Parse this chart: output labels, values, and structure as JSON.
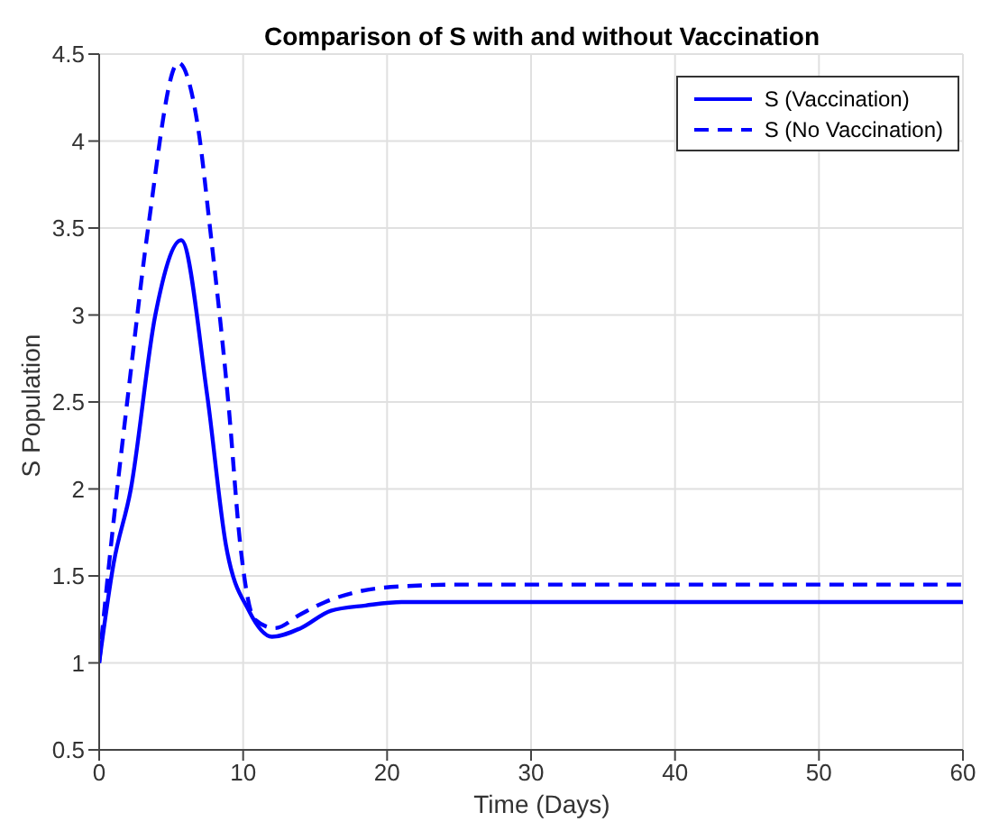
{
  "chart_data": {
    "type": "line",
    "title": "Comparison of S with and without Vaccination",
    "xlabel": "Time (Days)",
    "ylabel": "S Population",
    "series": [
      {
        "name": "S (Vaccination)",
        "color": "#0000ff",
        "line_style": "solid",
        "x": [
          0,
          1,
          2.2,
          3.9,
          5.7,
          7.5,
          8.8,
          10.4,
          12,
          14,
          16.1,
          18.5,
          21,
          25,
          30,
          40,
          50,
          60
        ],
        "values": [
          1,
          1.57,
          2,
          3,
          3.43,
          2.54,
          1.68,
          1.3,
          1.15,
          1.2,
          1.3,
          1.33,
          1.35,
          1.35,
          1.35,
          1.35,
          1.35,
          1.35
        ]
      },
      {
        "name": "S (No Vaccination)",
        "color": "#0000ff",
        "line_style": "dashed",
        "x": [
          0,
          0.6,
          2.2,
          3.4,
          5.5,
          6.9,
          7.7,
          9,
          9.8,
          10.8,
          12.2,
          14,
          15.7,
          18,
          21,
          25,
          30,
          40,
          50,
          60
        ],
        "values": [
          1,
          1.5,
          2.68,
          3.5,
          4.45,
          4.06,
          3.5,
          2.47,
          1.68,
          1.25,
          1.2,
          1.28,
          1.35,
          1.41,
          1.44,
          1.45,
          1.45,
          1.45,
          1.45,
          1.45
        ]
      }
    ],
    "xlim": [
      0,
      60
    ],
    "xticks": [
      0,
      10,
      20,
      30,
      40,
      50,
      60
    ],
    "ylim": [
      0.5,
      4.5
    ],
    "yticks": [
      0.5,
      1,
      1.5,
      2,
      2.5,
      3,
      3.5,
      4,
      4.5
    ],
    "grid": true,
    "legend": "top right",
    "marker": "none"
  }
}
